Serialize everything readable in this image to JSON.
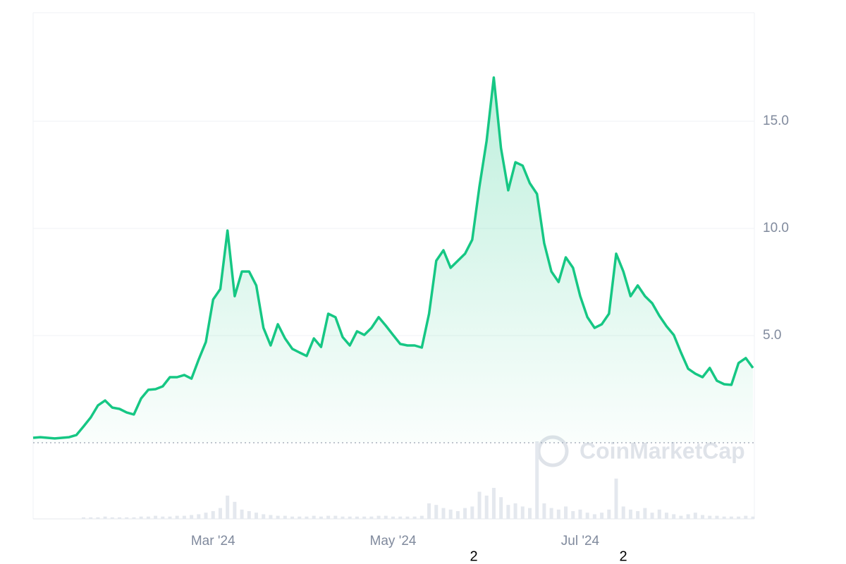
{
  "chart_data": {
    "type": "area",
    "values": [
      0.23,
      0.26,
      0.23,
      0.2,
      0.23,
      0.26,
      0.36,
      0.76,
      1.18,
      1.74,
      1.97,
      1.64,
      1.58,
      1.41,
      1.32,
      2.07,
      2.47,
      2.5,
      2.63,
      3.06,
      3.06,
      3.16,
      2.99,
      3.88,
      4.7,
      6.68,
      7.17,
      9.9,
      6.84,
      7.99,
      7.99,
      7.34,
      5.36,
      4.54,
      5.53,
      4.87,
      4.38,
      4.21,
      4.05,
      4.87,
      4.47,
      6.02,
      5.86,
      4.93,
      4.54,
      5.2,
      5.03,
      5.36,
      5.86,
      5.46,
      5.03,
      4.61,
      4.54,
      4.54,
      4.44,
      6.02,
      8.49,
      8.98,
      8.16,
      8.49,
      8.82,
      9.47,
      11.94,
      14.08,
      17.04,
      13.75,
      11.78,
      13.09,
      12.93,
      12.11,
      11.61,
      9.31,
      7.99,
      7.5,
      8.65,
      8.16,
      6.84,
      5.86,
      5.36,
      5.53,
      6.02,
      8.82,
      7.99,
      6.84,
      7.34,
      6.84,
      6.51,
      5.92,
      5.43,
      5.03,
      4.21,
      3.45,
      3.22,
      3.06,
      3.49,
      2.89,
      2.73,
      2.7,
      3.72,
      3.95,
      3.49
    ],
    "volume": [
      0,
      0,
      0,
      0,
      0,
      0,
      0,
      2,
      2,
      2,
      3,
      2,
      2,
      2,
      2,
      3,
      3,
      4,
      3,
      3,
      4,
      4,
      5,
      6,
      8,
      10,
      14,
      30,
      22,
      12,
      10,
      8,
      6,
      5,
      4,
      4,
      3,
      3,
      3,
      4,
      3,
      4,
      4,
      3,
      3,
      3,
      3,
      3,
      4,
      4,
      3,
      3,
      3,
      3,
      4,
      20,
      18,
      14,
      12,
      10,
      14,
      16,
      35,
      30,
      40,
      28,
      18,
      20,
      16,
      14,
      100,
      20,
      14,
      12,
      16,
      10,
      12,
      8,
      6,
      8,
      12,
      52,
      16,
      12,
      10,
      14,
      8,
      12,
      8,
      6,
      4,
      6,
      8,
      5,
      4,
      4,
      3,
      3,
      3,
      4,
      3
    ],
    "color": "#16c784",
    "ylim": [
      0,
      20
    ],
    "yticks": [
      {
        "value": 5,
        "label": "5.0"
      },
      {
        "value": 10,
        "label": "10.0"
      },
      {
        "value": 15,
        "label": "15.0"
      }
    ],
    "xticks": [
      {
        "value": 25,
        "label": "Mar '24"
      },
      {
        "value": 50,
        "label": "May '24"
      },
      {
        "value": 76,
        "label": "Jul '24"
      }
    ],
    "grid": true,
    "watermark": "CoinMarketCap",
    "bottom_labels": [
      "2",
      "2"
    ]
  }
}
